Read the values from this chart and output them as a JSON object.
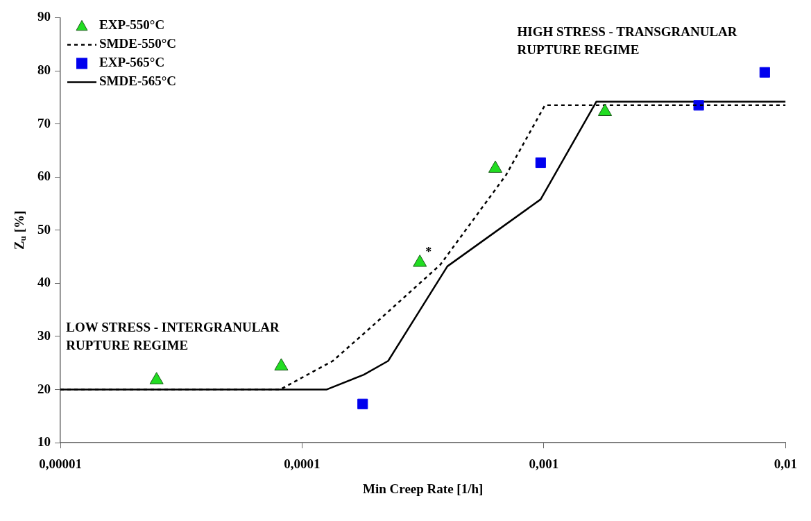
{
  "chart_data": {
    "type": "scatter",
    "xlabel": "Min Creep Rate [1/h]",
    "ylabel": "Z$_{u}$ [%]",
    "log": "x",
    "grid": false,
    "legend": "top left",
    "xlim": [
      1e-05,
      0.01
    ],
    "xticks": [
      {
        "value": 1e-05,
        "label": "0,00001"
      },
      {
        "value": 0.0001,
        "label": "0,0001"
      },
      {
        "value": 0.001,
        "label": "0,001"
      },
      {
        "value": 0.01,
        "label": "0,01"
      }
    ],
    "ylim": [
      10,
      90
    ],
    "yticks": [
      10,
      20,
      30,
      40,
      50,
      60,
      70,
      80,
      90
    ],
    "series": [
      {
        "name": "EXP-550°C",
        "marker": "triangle",
        "color": "#22dd22",
        "x": [
          2.5e-05,
          8.2e-05,
          0.000307,
          0.00063,
          0.00179
        ],
        "values": [
          21.8,
          24.4,
          43.9,
          61.6,
          72.3
        ]
      },
      {
        "name": "SMDE-550°C",
        "type": "line",
        "line_style": "dashed",
        "marker": "none",
        "color": "#000000",
        "x": [
          1e-05,
          8.1e-05,
          0.000134,
          0.000188,
          0.000373,
          0.000698,
          0.00101,
          0.01
        ],
        "values": [
          20,
          20,
          25.4,
          31.3,
          43.5,
          60.4,
          73.5,
          73.5
        ]
      },
      {
        "name": "EXP-565°C",
        "marker": "square",
        "color": "#0000ee",
        "x": [
          0.000178,
          0.00097,
          0.00437,
          0.0082
        ],
        "values": [
          17.3,
          62.7,
          73.5,
          79.7
        ]
      },
      {
        "name": "SMDE-565°C",
        "type": "line",
        "line_style": "solid",
        "marker": "none",
        "color": "#000000",
        "x": [
          1e-05,
          0.000126,
          0.00018,
          0.000227,
          0.000399,
          0.00097,
          0.00165,
          0.01
        ],
        "values": [
          20,
          20,
          22.8,
          25.4,
          43.2,
          55.8,
          74.2,
          74.2
        ]
      }
    ],
    "annotations": [
      "HIGH STRESS - TRANSGRANULAR\nRUPTURE REGIME",
      "LOW STRESS - INTERGRANULAR\nRUPTURE REGIME",
      {
        "text": "*",
        "x": 0.000307,
        "y": 43.9
      }
    ]
  }
}
